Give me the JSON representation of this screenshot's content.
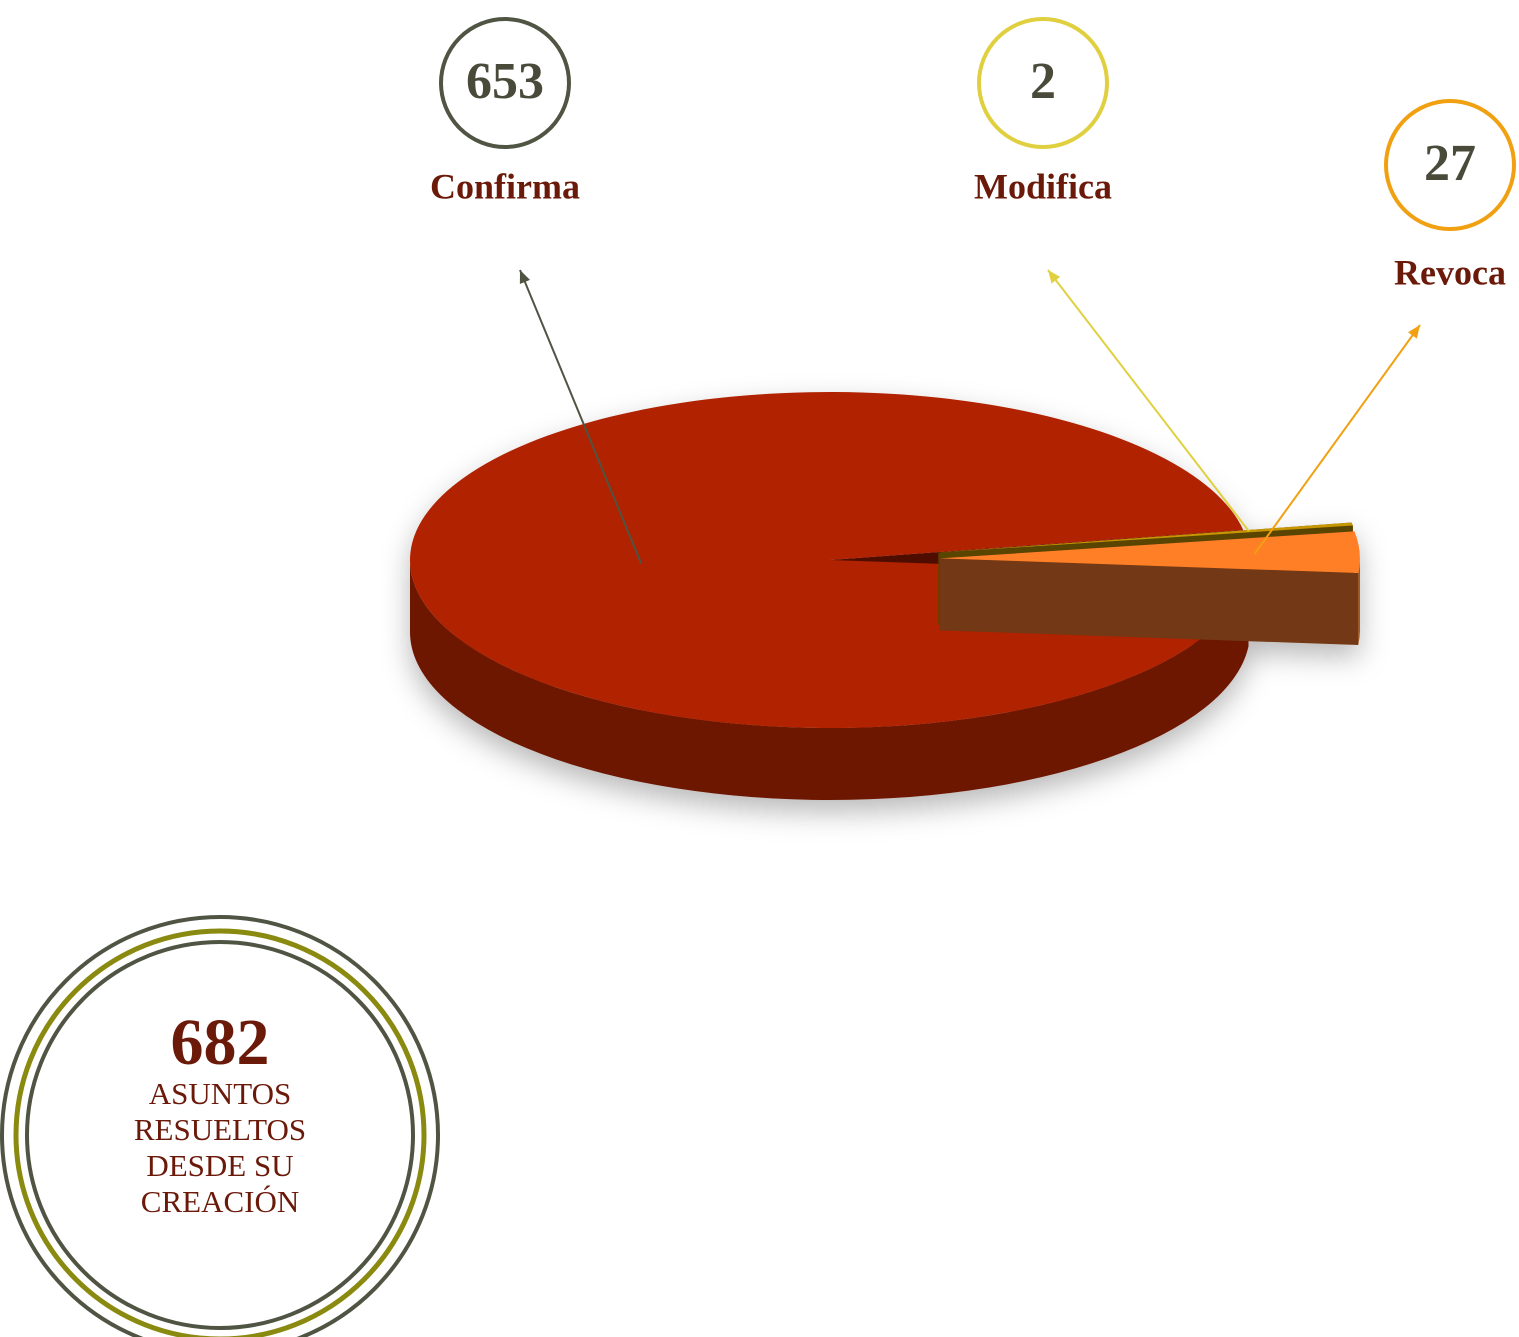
{
  "chart_data": {
    "type": "pie",
    "categories": [
      "Confirma",
      "Modifica",
      "Revoca"
    ],
    "values": [
      653,
      2,
      27
    ],
    "colors": [
      "#b02200",
      "#c89600",
      "#ff7f27"
    ],
    "total": 682,
    "total_label": "ASUNTOS RESUELTOS DESDE SU CREACIÓN"
  }
}
